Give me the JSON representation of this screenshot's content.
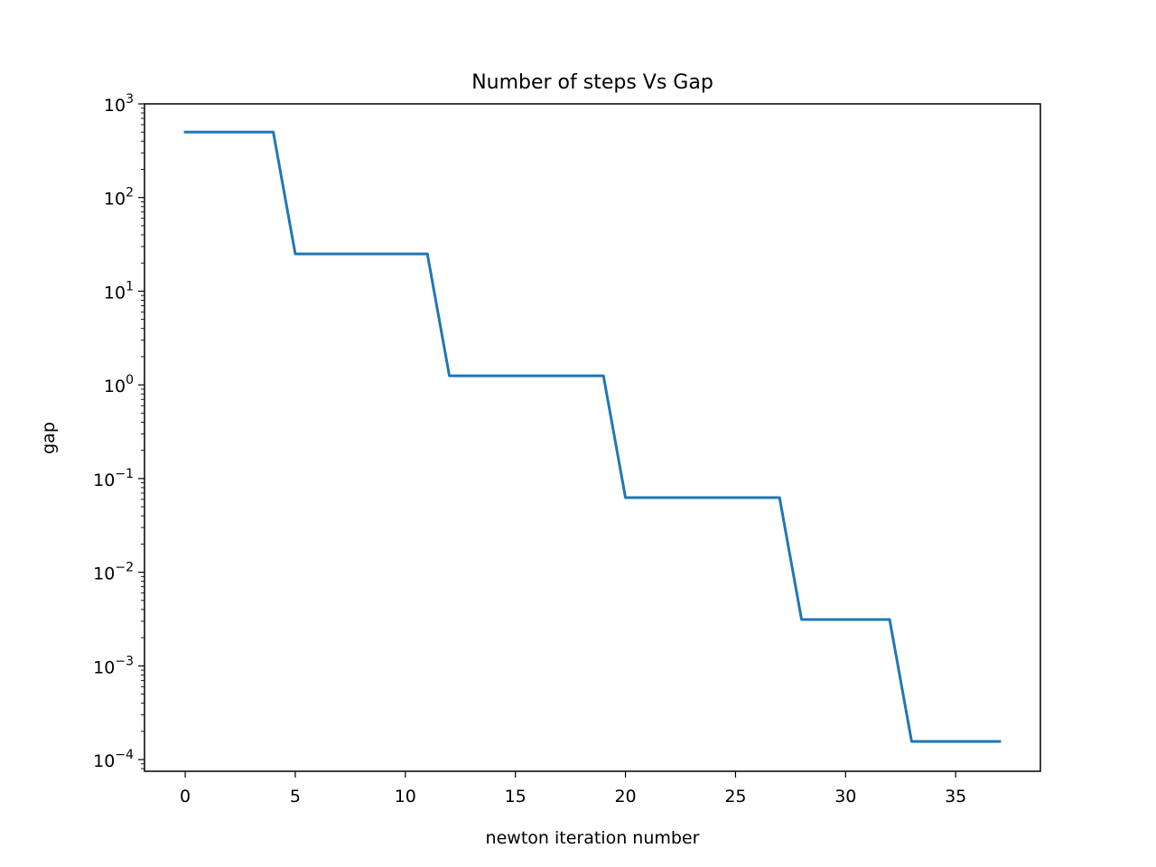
{
  "chart_data": {
    "type": "line",
    "title": "Number of steps Vs Gap",
    "xlabel": "newton iteration number",
    "ylabel": "gap",
    "yscale": "log",
    "xlim": [
      -1.85,
      38.85
    ],
    "ylim": [
      7.5e-05,
      1000
    ],
    "x_ticks": [
      0,
      5,
      10,
      15,
      20,
      25,
      30,
      35
    ],
    "y_ticks": [
      {
        "value": 0.0001,
        "base": "10",
        "exp": "−4"
      },
      {
        "value": 0.001,
        "base": "10",
        "exp": "−3"
      },
      {
        "value": 0.01,
        "base": "10",
        "exp": "−2"
      },
      {
        "value": 0.1,
        "base": "10",
        "exp": "−1"
      },
      {
        "value": 1,
        "base": "10",
        "exp": "0"
      },
      {
        "value": 10,
        "base": "10",
        "exp": "1"
      },
      {
        "value": 100,
        "base": "10",
        "exp": "2"
      },
      {
        "value": 1000,
        "base": "10",
        "exp": "3"
      }
    ],
    "grid": false,
    "line_color": "#1f77b4",
    "series": [
      {
        "x": [
          0,
          1,
          2,
          3,
          4,
          5,
          6,
          7,
          8,
          9,
          10,
          11,
          12,
          13,
          14,
          15,
          16,
          17,
          18,
          19,
          20,
          21,
          22,
          23,
          24,
          25,
          26,
          27,
          28,
          29,
          30,
          31,
          32,
          33,
          34,
          35,
          36,
          37
        ],
        "values": [
          500,
          500,
          500,
          500,
          500,
          25,
          25,
          25,
          25,
          25,
          25,
          25,
          1.25,
          1.25,
          1.25,
          1.25,
          1.25,
          1.25,
          1.25,
          1.25,
          0.0625,
          0.0625,
          0.0625,
          0.0625,
          0.0625,
          0.0625,
          0.0625,
          0.0625,
          0.003125,
          0.003125,
          0.003125,
          0.003125,
          0.003125,
          0.00015625,
          0.00015625,
          0.00015625,
          0.00015625,
          0.00015625
        ]
      }
    ]
  }
}
